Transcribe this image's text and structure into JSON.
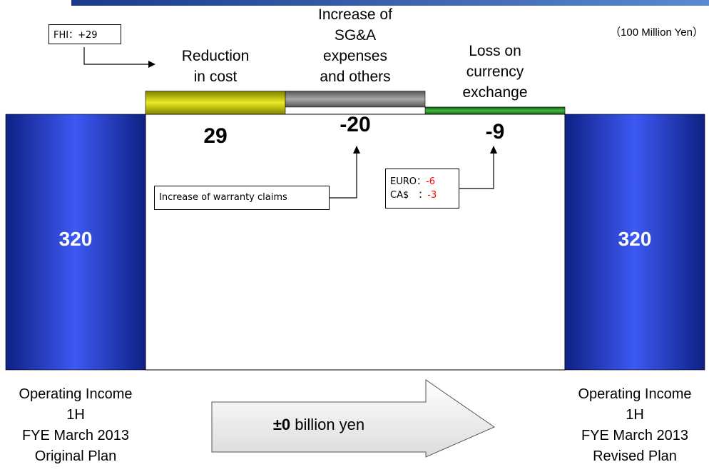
{
  "chart_data": {
    "type": "waterfall",
    "unit": "（100 Million Yen）",
    "categories": [
      "Operating Income\n1H\nFYE March 2013\nOriginal Plan",
      "Reduction\nin cost",
      "Increase of\nSG&A\nexpenses\nand others",
      "Loss on\ncurrency\nexchange",
      "Operating Income\n1H\nFYE March 2013\nRevised Plan"
    ],
    "values": [
      320,
      29,
      -20,
      -9,
      320
    ],
    "colors": [
      "#1a3cf0",
      "#e8e800",
      "#9a9a9a",
      "#22aa22",
      "#1a3cf0"
    ],
    "annotations": {
      "fhi": "FHI：+29",
      "warranty": "Increase of warranty claims",
      "currency": [
        {
          "label": "EURO：",
          "value": -6
        },
        {
          "label": "CA$　：",
          "value": -3
        }
      ]
    },
    "change": {
      "value_label": "±0",
      "text": "billion yen"
    }
  }
}
